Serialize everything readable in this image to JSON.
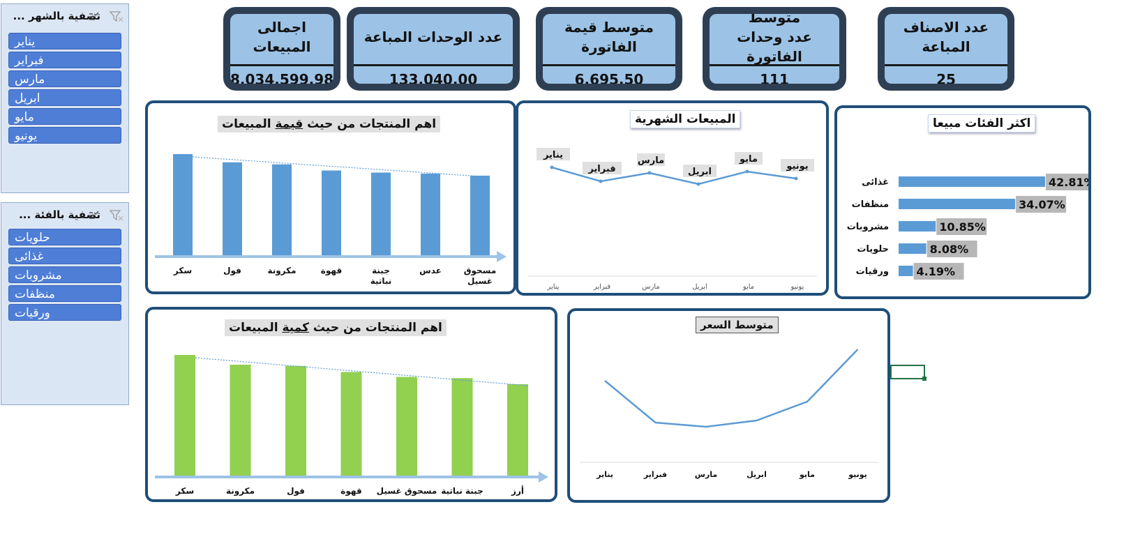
{
  "slicers": {
    "month": {
      "title": "تصفية بالشهر ...",
      "items": [
        "يناير",
        "فبراير",
        "مارس",
        "ابريل",
        "مايو",
        "يونيو"
      ]
    },
    "category": {
      "title": "تصفية بالفئة ...",
      "items": [
        "حلويات",
        "غذائى",
        "مشروبات",
        "منظفات",
        "ورقيات"
      ]
    }
  },
  "kpis": {
    "total_sales": {
      "title": "اجمالى المبيعات",
      "value": "8,034,599.98"
    },
    "units_sold": {
      "title": "عدد الوحدات المباعة",
      "value": "133,040.00"
    },
    "avg_invoice_value": {
      "title": "متوسط قيمة الفاتورة",
      "value": "6,695.50"
    },
    "avg_invoice_units": {
      "title_line1": "متوسط",
      "title_line2": "عدد وحدات الفاتورة",
      "value": "111"
    },
    "items_sold_count": {
      "title": "عدد الاصناف المباعة",
      "value": "25"
    }
  },
  "panels": {
    "top_value": {
      "title_prefix": "اهم المنتجات من حيث ",
      "title_underlined": "قيمة",
      "title_suffix": " المبيعات"
    },
    "monthly": {
      "title": "المبيعات الشهرية"
    },
    "top_categories": {
      "title": "اكثر الفئات مبيعا"
    },
    "top_qty": {
      "title_prefix": "اهم المنتجات من حيث ",
      "title_underlined": "كمية",
      "title_suffix": " المبيعات"
    },
    "avg_price": {
      "title": "متوسط السعر"
    }
  },
  "colors": {
    "blue_bar": "#5b9bd5",
    "green_bar": "#92d050",
    "line": "#5b9bd5",
    "frame": "#1f4e79",
    "kpi_frame": "#2f3f53",
    "kpi_fill": "#9cc3e6"
  },
  "chart_data": [
    {
      "id": "top_value",
      "type": "bar",
      "categories": [
        "سكر",
        "فول",
        "مكرونة",
        "قهوة",
        "جبنة نباتية",
        "عدس",
        "مسحوق غسيل"
      ],
      "values": [
        100,
        92,
        90,
        84,
        82,
        81,
        79
      ],
      "trendline": "dotted",
      "ylim": [
        0,
        100
      ]
    },
    {
      "id": "monthly",
      "type": "line",
      "categories": [
        "يناير",
        "فبراير",
        "مارس",
        "ابريل",
        "مايو",
        "يونيو"
      ],
      "values": [
        74,
        64,
        70,
        62,
        71,
        66
      ],
      "data_labels": [
        "يناير",
        "فبراير",
        "مارس",
        "ابريل",
        "مايو",
        "يونيو"
      ],
      "ylim": [
        0,
        100
      ]
    },
    {
      "id": "top_categories",
      "type": "bar",
      "orientation": "horizontal",
      "categories": [
        "غذائى",
        "منظفات",
        "مشروبات",
        "حلويات",
        "ورقيات"
      ],
      "values": [
        42.81,
        34.07,
        10.85,
        8.08,
        4.19
      ],
      "labels": [
        "42.81%",
        "34.07%",
        "10.85%",
        "8.08%",
        "4.19%"
      ]
    },
    {
      "id": "top_qty",
      "type": "bar",
      "categories": [
        "سكر",
        "مكرونة",
        "فول",
        "قهوة",
        "مسحوق غسيل",
        "جبنة نباتية",
        "أرز"
      ],
      "values": [
        100,
        92,
        91,
        86,
        82,
        81,
        76
      ],
      "trendline": "dotted",
      "ylim": [
        0,
        100
      ]
    },
    {
      "id": "avg_price",
      "type": "line",
      "categories": [
        "يناير",
        "فبراير",
        "مارس",
        "ابريل",
        "مايو",
        "يونيو"
      ],
      "values": [
        80,
        40,
        36,
        42,
        60,
        110
      ],
      "ylim": [
        0,
        120
      ]
    }
  ]
}
